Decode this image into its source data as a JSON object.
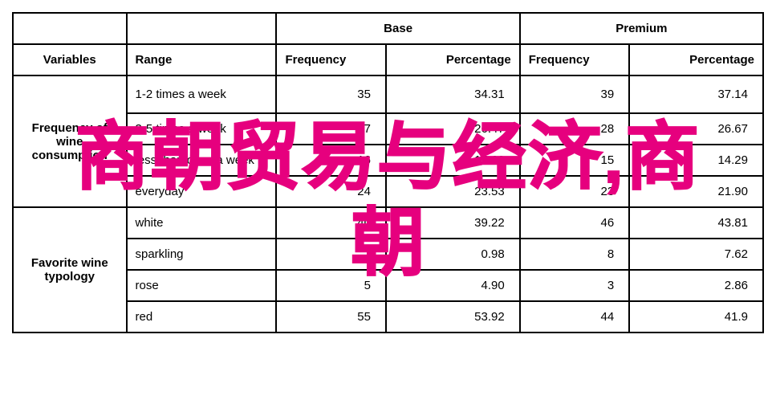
{
  "headers": {
    "base": "Base",
    "premium": "Premium",
    "variables": "Variables",
    "range": "Range",
    "frequency": "Frequency",
    "percentage": "Percentage"
  },
  "sections": [
    {
      "variable": "Frequency of wine consumption",
      "rows": [
        {
          "range": "1-2 times a week",
          "base_freq": "35",
          "base_pct": "34.31",
          "prem_freq": "39",
          "prem_pct": "37.14"
        },
        {
          "range": "3-5 times a week",
          "base_freq": "27",
          "base_pct": "26.47",
          "prem_freq": "28",
          "prem_pct": "26.67"
        },
        {
          "range": "less than once a week",
          "base_freq": "16",
          "base_pct": "15.69",
          "prem_freq": "15",
          "prem_pct": "14.29"
        },
        {
          "range": "everyday",
          "base_freq": "24",
          "base_pct": "23.53",
          "prem_freq": "23",
          "prem_pct": "21.90"
        }
      ]
    },
    {
      "variable": "Favorite wine typology",
      "rows": [
        {
          "range": "white",
          "base_freq": "40",
          "base_pct": "39.22",
          "prem_freq": "46",
          "prem_pct": "43.81"
        },
        {
          "range": "sparkling",
          "base_freq": "1",
          "base_pct": "0.98",
          "prem_freq": "8",
          "prem_pct": "7.62"
        },
        {
          "range": "rose",
          "base_freq": "5",
          "base_pct": "4.90",
          "prem_freq": "3",
          "prem_pct": "2.86"
        },
        {
          "range": "red",
          "base_freq": "55",
          "base_pct": "53.92",
          "prem_freq": "44",
          "prem_pct": "41.9"
        }
      ]
    }
  ],
  "overlay": {
    "line1": "商朝贸易与经济,商",
    "line2": "朝",
    "color": "#e6007e"
  },
  "style": {
    "border_color": "#000000",
    "background": "#ffffff",
    "font": "Arial"
  }
}
